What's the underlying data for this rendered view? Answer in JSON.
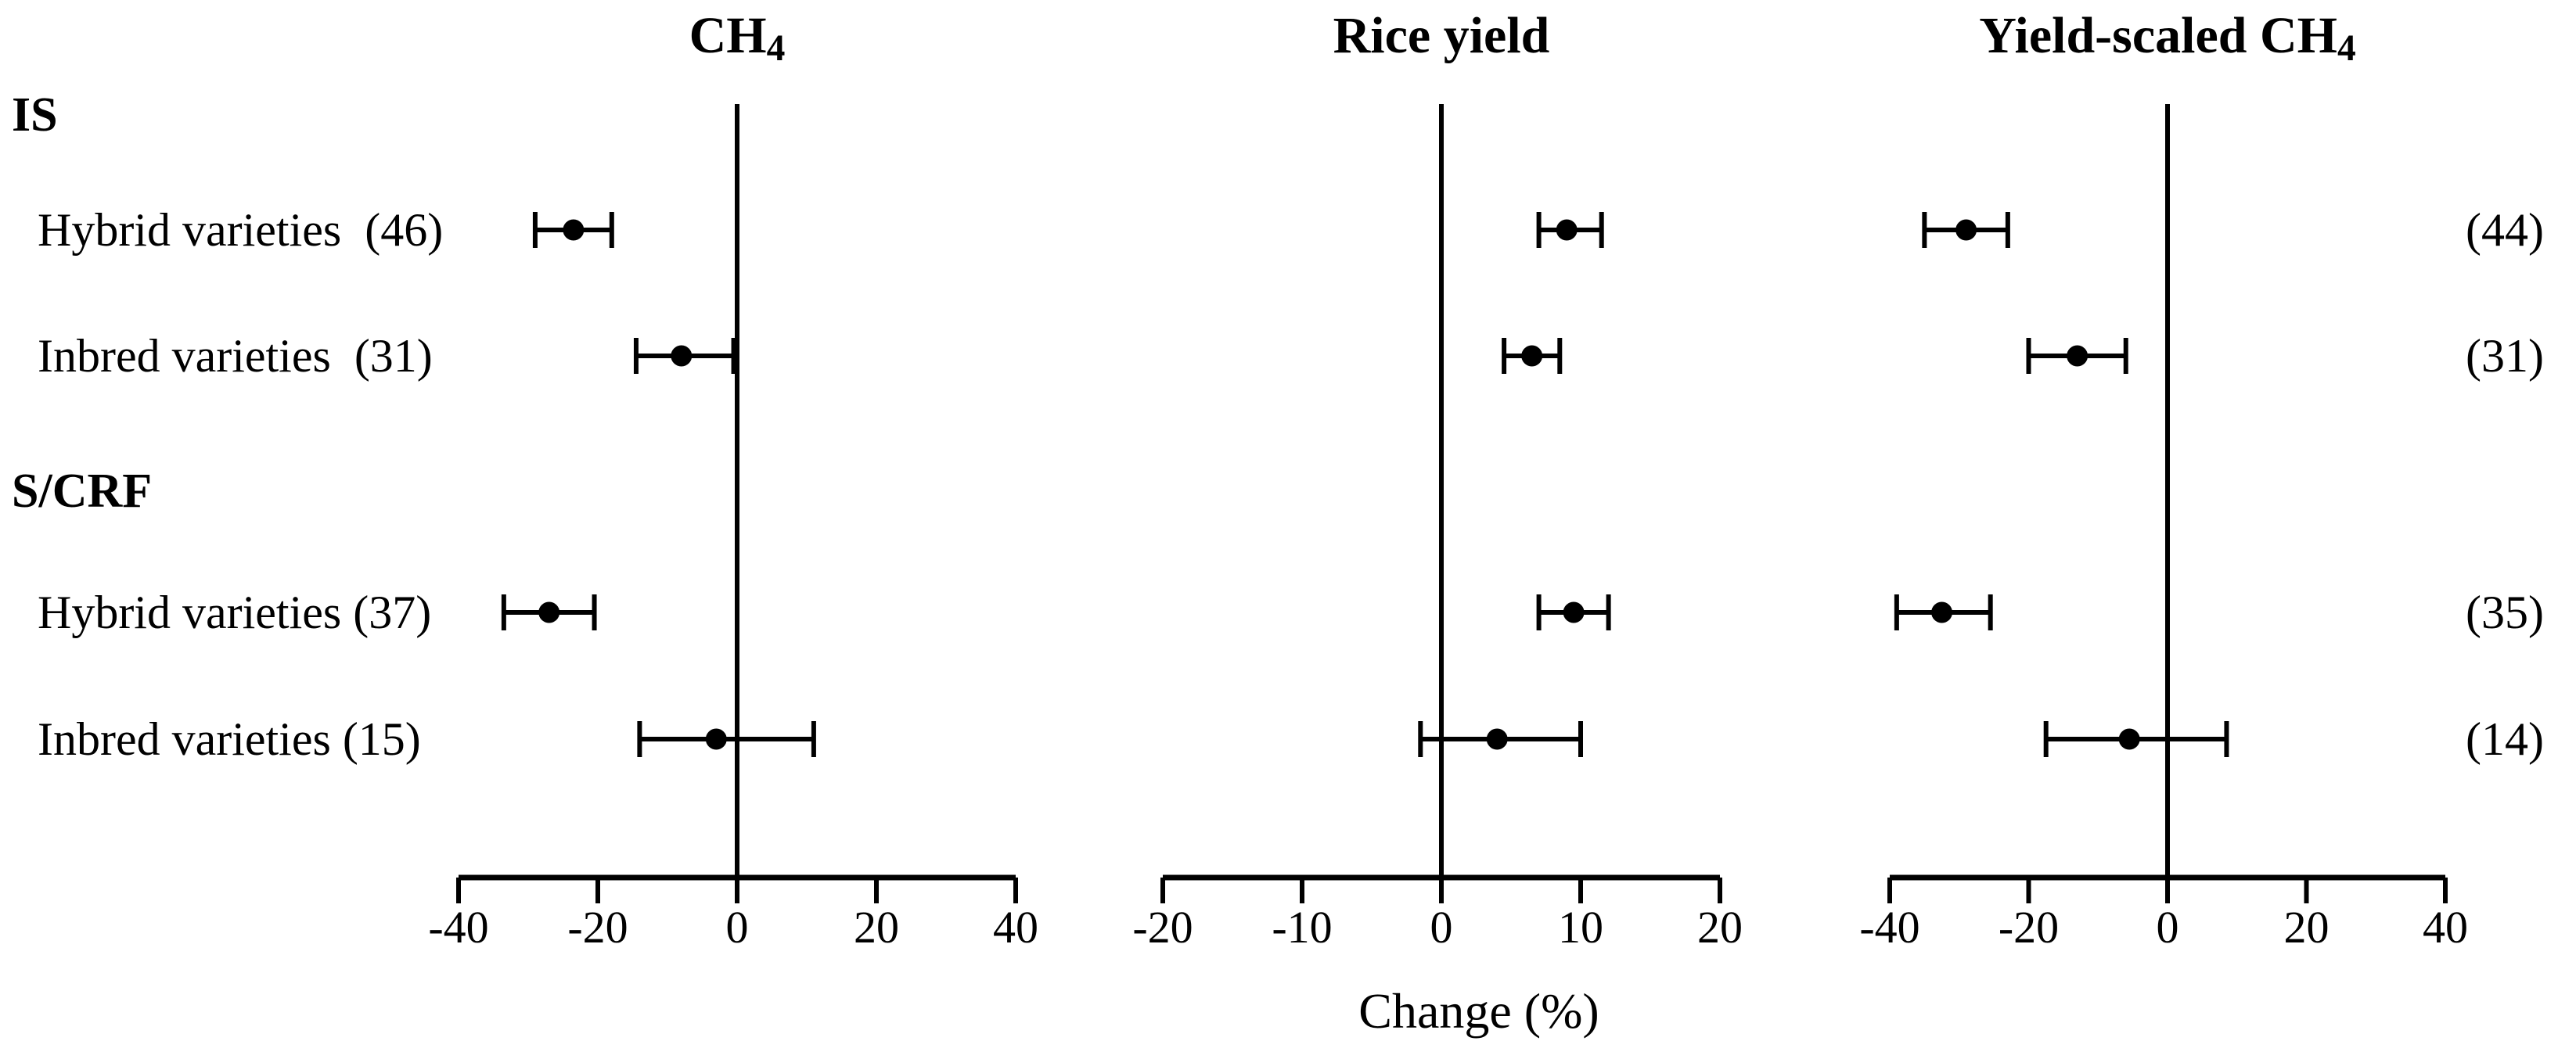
{
  "figure": {
    "xlabel": "Change (%)",
    "groups": [
      {
        "label": "IS"
      },
      {
        "label": "S/CRF"
      }
    ],
    "row_labels": [
      "Hybrid varieties  (46)",
      "Inbred varieties  (31)",
      "Hybrid varieties (37)",
      "Inbred varieties (15)"
    ],
    "right_counts": [
      "(44)",
      "(31)",
      "(35)",
      "(14)"
    ],
    "colors": {
      "ink": "#000000",
      "background": "#ffffff"
    }
  },
  "chart_data": [
    {
      "type": "scatter",
      "title_main": "CH",
      "title_sub": "4",
      "xlabel": "Change (%)",
      "xlim": [
        -40,
        40
      ],
      "ticks": [
        -40,
        -20,
        0,
        20,
        40
      ],
      "zero_reference_line": true,
      "rows": [
        {
          "group": "IS",
          "label": "Hybrid varieties",
          "n": 46,
          "mean": -23.5,
          "ci_low": -29,
          "ci_high": -18
        },
        {
          "group": "IS",
          "label": "Inbred varieties",
          "n": 31,
          "mean": -8,
          "ci_low": -14.5,
          "ci_high": -0.5
        },
        {
          "group": "S/CRF",
          "label": "Hybrid varieties",
          "n": 37,
          "mean": -27,
          "ci_low": -33.5,
          "ci_high": -20.5
        },
        {
          "group": "S/CRF",
          "label": "Inbred varieties",
          "n": 15,
          "mean": -3,
          "ci_low": -14,
          "ci_high": 11
        }
      ]
    },
    {
      "type": "scatter",
      "title_main": "Rice yield",
      "title_sub": "",
      "xlabel": "Change (%)",
      "xlim": [
        -20,
        20
      ],
      "ticks": [
        -20,
        -10,
        0,
        10,
        20
      ],
      "zero_reference_line": true,
      "rows": [
        {
          "group": "IS",
          "label": "Hybrid varieties",
          "n": 46,
          "mean": 9,
          "ci_low": 7,
          "ci_high": 11.5
        },
        {
          "group": "IS",
          "label": "Inbred varieties",
          "n": 31,
          "mean": 6.5,
          "ci_low": 4.5,
          "ci_high": 8.5
        },
        {
          "group": "S/CRF",
          "label": "Hybrid varieties",
          "n": 37,
          "mean": 9.5,
          "ci_low": 7,
          "ci_high": 12
        },
        {
          "group": "S/CRF",
          "label": "Inbred varieties",
          "n": 15,
          "mean": 4,
          "ci_low": -1.5,
          "ci_high": 10
        }
      ]
    },
    {
      "type": "scatter",
      "title_main": "Yield-scaled CH",
      "title_sub": "4",
      "xlabel": "Change (%)",
      "xlim": [
        -40,
        40
      ],
      "ticks": [
        -40,
        -20,
        0,
        20,
        40
      ],
      "zero_reference_line": true,
      "rows": [
        {
          "group": "IS",
          "label": "Hybrid varieties",
          "n": 44,
          "mean": -29,
          "ci_low": -35,
          "ci_high": -23
        },
        {
          "group": "IS",
          "label": "Inbred varieties",
          "n": 31,
          "mean": -13,
          "ci_low": -20,
          "ci_high": -6
        },
        {
          "group": "S/CRF",
          "label": "Hybrid varieties",
          "n": 35,
          "mean": -32.5,
          "ci_low": -39,
          "ci_high": -25.5
        },
        {
          "group": "S/CRF",
          "label": "Inbred varieties",
          "n": 14,
          "mean": -5.5,
          "ci_low": -17.5,
          "ci_high": 8.5
        }
      ]
    }
  ]
}
